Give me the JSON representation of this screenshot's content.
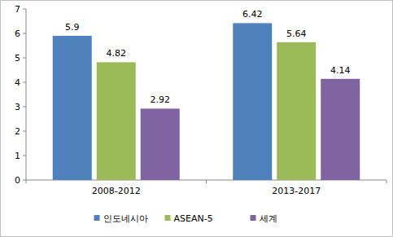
{
  "chart_data": {
    "type": "bar",
    "categories": [
      "2008-2012",
      "2013-2017"
    ],
    "series": [
      {
        "name": "인도네시아",
        "color": "#4f81bd",
        "values": [
          5.9,
          6.42
        ]
      },
      {
        "name": "ASEAN-5",
        "color": "#9bbb59",
        "values": [
          4.82,
          5.64
        ]
      },
      {
        "name": "세계",
        "color": "#8064a2",
        "values": [
          2.92,
          4.14
        ]
      }
    ],
    "ylim": [
      0,
      7
    ],
    "yticks": [
      0,
      1,
      2,
      3,
      4,
      5,
      6,
      7
    ],
    "grid": false,
    "legend": "bottom",
    "data_labels": true
  }
}
